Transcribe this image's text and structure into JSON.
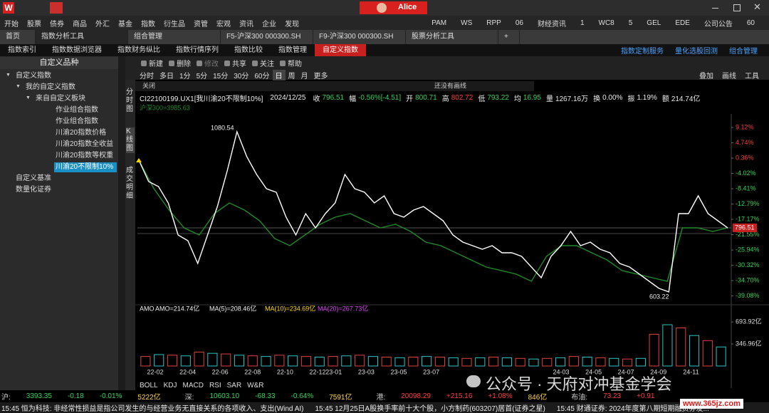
{
  "titlebar": {
    "user": "Alice"
  },
  "menu": {
    "left": [
      "开始",
      "股票",
      "债券",
      "商品",
      "外汇",
      "基金",
      "指数",
      "衍生品",
      "资管",
      "宏观",
      "资讯",
      "企业",
      "发现"
    ],
    "right": [
      "PAM",
      "WS",
      "RPP",
      "06",
      "财经资讯",
      "1",
      "WC8",
      "5",
      "GEL",
      "EDE",
      "公司公告",
      "60"
    ]
  },
  "tabs": {
    "items": [
      "首页",
      "指数分析工具",
      "组合管理",
      "F5-沪深300 000300.SH",
      "F9-沪深300 000300.SH",
      "股票分析工具",
      "+"
    ],
    "active": 1
  },
  "subtabs": {
    "left": [
      "指数索引",
      "指数数据浏览器",
      "指数财务纵比",
      "指数行情序列",
      "指数比较",
      "指数管理",
      "自定义指数"
    ],
    "active": 6,
    "right": [
      "指数定制服务",
      "量化选股回测",
      "组合管理"
    ]
  },
  "sidebar": {
    "title": "自定义品种",
    "tree": [
      {
        "label": "自定义指数",
        "children": [
          {
            "label": "我的自定义指数",
            "children": [
              {
                "label": "来自自定义板块",
                "children": [
                  {
                    "label": "作业组合指数"
                  },
                  {
                    "label": "作业组合指数"
                  },
                  {
                    "label": "川渝20指数价格"
                  },
                  {
                    "label": "川渝20指数全收益"
                  },
                  {
                    "label": "川渝20指数等权重"
                  },
                  {
                    "label": "川渝20不限制10%",
                    "selected": true
                  }
                ]
              }
            ]
          }
        ]
      },
      {
        "label": "自定义基准"
      },
      {
        "label": "数量化证券"
      }
    ]
  },
  "toolbar": [
    "新建",
    "删除",
    "修改",
    "共享",
    "关注",
    "帮助"
  ],
  "periods": {
    "items": [
      "分时",
      "多日",
      "1分",
      "5分",
      "15分",
      "30分",
      "60分",
      "日",
      "周",
      "月",
      "更多"
    ],
    "active": 7
  },
  "tools_right": [
    "叠加",
    "画线",
    "工具"
  ],
  "side_tabs": [
    "分时图",
    "K线图",
    "成交明细"
  ],
  "draw_bar": {
    "close": "关闭",
    "hint": "还没有画线"
  },
  "quote": {
    "code": "CI22100199.UX1[我川渝20不限制10%]",
    "date": "2024/12/25",
    "fields": [
      {
        "label": "收",
        "value": "796.51",
        "color": "#2fd45a"
      },
      {
        "label": "幅",
        "value": "-0.56%[-4.51]",
        "color": "#2fd45a"
      },
      {
        "label": "开",
        "value": "800.71",
        "color": "#2fd45a"
      },
      {
        "label": "高",
        "value": "802.72",
        "color": "#ff3b3b"
      },
      {
        "label": "低",
        "value": "793.22",
        "color": "#2fd45a"
      },
      {
        "label": "均",
        "value": "16.95",
        "color": "#2fd45a"
      },
      {
        "label": "量",
        "value": "1267.16万",
        "color": "#e8e8e8"
      },
      {
        "label": "换",
        "value": "0.00%",
        "color": "#e8e8e8"
      },
      {
        "label": "振",
        "value": "1.19%",
        "color": "#e8e8e8"
      },
      {
        "label": "额",
        "value": "214.74亿",
        "color": "#e8e8e8"
      }
    ]
  },
  "compare": "沪深300=3985.63",
  "chart": {
    "type": "line",
    "ylim": [
      -41.0,
      13.0
    ],
    "yticks": [
      {
        "value": 9.12,
        "label": "9.12%"
      },
      {
        "value": 4.74,
        "label": "4.74%"
      },
      {
        "value": 0.36,
        "label": "0.36%"
      },
      {
        "value": -4.02,
        "label": "-4.02%"
      },
      {
        "value": -8.41,
        "label": "-8.41%"
      },
      {
        "value": -12.79,
        "label": "-12.79%"
      },
      {
        "value": -17.17,
        "label": "-17.17%"
      },
      {
        "value": -21.55,
        "label": "-21.55%"
      },
      {
        "value": -25.94,
        "label": "-25.94%"
      },
      {
        "value": -30.32,
        "label": "-30.32%"
      },
      {
        "value": -34.7,
        "label": "-34.70%"
      },
      {
        "value": -39.08,
        "label": "-39.08%"
      }
    ],
    "series": [
      {
        "color": "#ffffff",
        "values": [
          -0.25,
          -6.36,
          -7.79,
          -12.47,
          -21.64,
          -23.27,
          -29.79,
          -21.64,
          -13.49,
          -3.31,
          7.9,
          0.77,
          -4.32,
          -8.4,
          -9.42,
          -16.55,
          -21.64,
          -15.53,
          -19.6,
          -15.53,
          -12.47,
          -4.32,
          -8.4,
          -9.42,
          -12.47,
          -10.44,
          -15.53,
          -16.55,
          -14.51,
          -13.49,
          -15.53,
          -17.57,
          -21.64,
          -23.68,
          -24.7,
          -25.71,
          -24.7,
          -26.73,
          -26.73,
          -27.75,
          -30.81,
          -33.86,
          -27.75,
          -24.7,
          -20.62,
          -24.7,
          -23.68,
          -25.71,
          -26.73,
          -29.79,
          -30.81,
          -32.84,
          -34.88,
          -36.92,
          -37.93,
          -15.53,
          -15.53,
          -10.44,
          -15.53,
          -17.57,
          -19.6
        ]
      },
      {
        "color": "#1f8a2a",
        "values": [
          -0.25,
          -8.4,
          -14.51,
          -19.6,
          -21.64,
          -15.53,
          -12.47,
          -14.51,
          -17.57,
          -22.66,
          -24.7,
          -21.64,
          -18.58,
          -16.55,
          -15.53,
          -17.57,
          -19.6,
          -18.58,
          -20.62,
          -23.68,
          -24.7,
          -26.73,
          -28.77,
          -30.81,
          -31.82,
          -32.84,
          -34.88,
          -27.75,
          -24.7,
          -24.7,
          -26.73,
          -28.77,
          -31.82,
          -32.84,
          -33.86,
          -34.88,
          -19.6,
          -19.6,
          -20.62,
          -19.6
        ]
      }
    ],
    "annotations": [
      "1080.54",
      "603.22"
    ],
    "last_label": "796.51",
    "xticks": [
      "22-02",
      "22-04",
      "22-06",
      "22-08",
      "22-10",
      "22-12",
      "23-01",
      "23-03",
      "23-05",
      "23-07",
      "24-03",
      "24-05",
      "24-07",
      "24-09",
      "24-11"
    ]
  },
  "volume": {
    "header": [
      "AMO",
      "AMO=214.74亿",
      "MA(5)=208.46亿",
      "MA(10)=234.69亿",
      "MA(20)=267.73亿"
    ],
    "ylim": [
      0,
      830
    ],
    "yticks": [
      {
        "value": 693.92,
        "label": "693.92亿"
      },
      {
        "value": 346.96,
        "label": "346.96亿"
      }
    ],
    "values": [
      150,
      180,
      170,
      160,
      220,
      200,
      190,
      170,
      160,
      150,
      170,
      160,
      150,
      140,
      150,
      160,
      170,
      150,
      140,
      130,
      140,
      150,
      140,
      130,
      120,
      130,
      140,
      130,
      120,
      110,
      120,
      130,
      150,
      140,
      130,
      120,
      110,
      120,
      500,
      650,
      600,
      480,
      400,
      300
    ]
  },
  "indicators": [
    "BOLL",
    "KDJ",
    "MACD",
    "RSI",
    "SAR",
    "W&R"
  ],
  "status": [
    [
      "沪:",
      "3393.35",
      "-0.18",
      "-0.01%",
      "5222亿"
    ],
    [
      "深:",
      "10603.10",
      "-68.33",
      "-0.64%",
      "7591亿"
    ],
    [
      "港:",
      "20098.29",
      "+215.16",
      "+1.08%",
      "846亿"
    ],
    [
      "布油:",
      "73.23",
      "+0.91"
    ]
  ],
  "news": [
    "15:45  恒为科技: 非经常性损益是指公司发生的与经营业务无直接关系的各项收入、支出(Wind AI)",
    "15:45  12月25日A股换手率前十大个股，小方制药(603207)居首(证券之星)",
    "15:45  财通证券: 2024年度第八期短期融资券发..."
  ],
  "watermark": [
    "公众号 · 天府对冲基金学会",
    "www.365jz.com"
  ]
}
